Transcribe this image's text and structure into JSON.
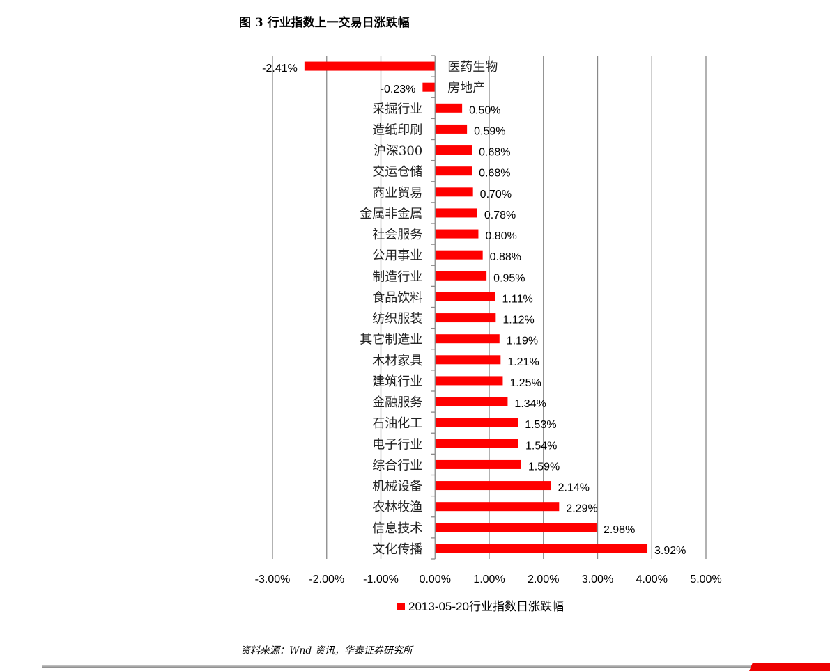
{
  "title": "图 3   行业指数上一交易日涨跌幅",
  "source": "资料来源：Wnd 资讯，华泰证券研究所",
  "colors": {
    "bar": "#ff0000",
    "grid": "#888888",
    "footer_accent": "#e00000"
  },
  "chart_data": {
    "type": "bar",
    "orientation": "horizontal",
    "title": "",
    "xlabel": "",
    "ylabel": "",
    "xlim": [
      -0.03,
      0.05
    ],
    "x_ticks": [
      "-3.00%",
      "-2.00%",
      "-1.00%",
      "0.00%",
      "1.00%",
      "2.00%",
      "3.00%",
      "4.00%",
      "5.00%"
    ],
    "grid": true,
    "legend_position": "bottom",
    "categories": [
      "医药生物",
      "房地产",
      "采掘行业",
      "造纸印刷",
      "沪深300",
      "交运仓储",
      "商业贸易",
      "金属非金属",
      "社会服务",
      "公用事业",
      "制造行业",
      "食品饮料",
      "纺织服装",
      "其它制造业",
      "木材家具",
      "建筑行业",
      "金融服务",
      "石油化工",
      "电子行业",
      "综合行业",
      "机械设备",
      "农林牧渔",
      "信息技术",
      "文化传播"
    ],
    "series": [
      {
        "name": "2013-05-20行业指数日涨跌幅",
        "values": [
          -2.41,
          -0.23,
          0.5,
          0.59,
          0.68,
          0.68,
          0.7,
          0.78,
          0.8,
          0.88,
          0.95,
          1.11,
          1.12,
          1.19,
          1.21,
          1.25,
          1.34,
          1.53,
          1.54,
          1.59,
          2.14,
          2.29,
          2.98,
          3.92
        ],
        "labels": [
          "-2.41%",
          "-0.23%",
          "0.50%",
          "0.59%",
          "0.68%",
          "0.68%",
          "0.70%",
          "0.78%",
          "0.80%",
          "0.88%",
          "0.95%",
          "1.11%",
          "1.12%",
          "1.19%",
          "1.21%",
          "1.25%",
          "1.34%",
          "1.53%",
          "1.54%",
          "1.59%",
          "2.14%",
          "2.29%",
          "2.98%",
          "3.92%"
        ]
      }
    ]
  }
}
